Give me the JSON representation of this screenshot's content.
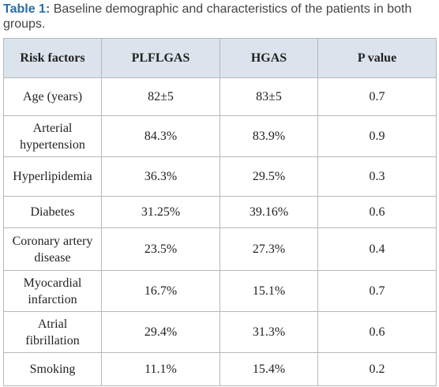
{
  "caption": {
    "label": "Table 1:",
    "text": "Baseline demographic and characteristics of the patients in both groups."
  },
  "table": {
    "header": [
      "Risk factors",
      "PLFLGAS",
      "HGAS",
      "P value"
    ],
    "rows": [
      [
        "Age (years)",
        "82±5",
        "83±5",
        "0.7"
      ],
      [
        "Arterial hypertension",
        "84.3%",
        "83.9%",
        "0.9"
      ],
      [
        "Hyperlipidemia",
        "36.3%",
        "29.5%",
        "0.3"
      ],
      [
        "Diabetes",
        "31.25%",
        "39.16%",
        "0.6"
      ],
      [
        "Coronary artery disease",
        "23.5%",
        "27.3%",
        "0.4"
      ],
      [
        "Myocardial infarction",
        "16.7%",
        "15.1%",
        "0.7"
      ],
      [
        "Atrial fibrillation",
        "29.4%",
        "31.3%",
        "0.6"
      ],
      [
        "Smoking",
        "11.1%",
        "15.4%",
        "0.2"
      ]
    ]
  }
}
